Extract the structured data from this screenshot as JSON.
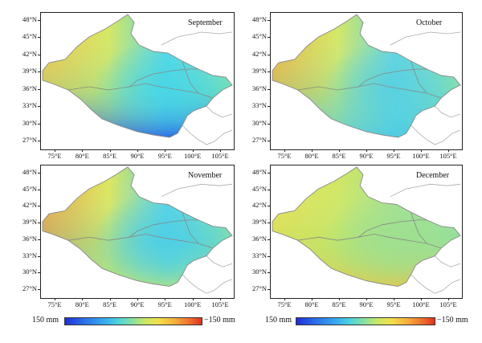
{
  "panels": [
    {
      "title": "September",
      "key": "sep"
    },
    {
      "title": "October",
      "key": "oct"
    },
    {
      "title": "November",
      "key": "nov"
    },
    {
      "title": "December",
      "key": "dec"
    }
  ],
  "y_ticks": [
    "48°N",
    "45°N",
    "42°N",
    "39°N",
    "36°N",
    "33°N",
    "30°N",
    "27°N"
  ],
  "x_ticks": [
    "75°E",
    "80°E",
    "85°E",
    "90°E",
    "95°E",
    "100°E",
    "105°E"
  ],
  "colorbar": {
    "left_label": "150 mm",
    "right_label": "−150 mm",
    "colors": [
      "#1f2fd8",
      "#37a8f0",
      "#7fe0a8",
      "#f1e24a",
      "#ef6a2c",
      "#e0311e"
    ]
  }
}
